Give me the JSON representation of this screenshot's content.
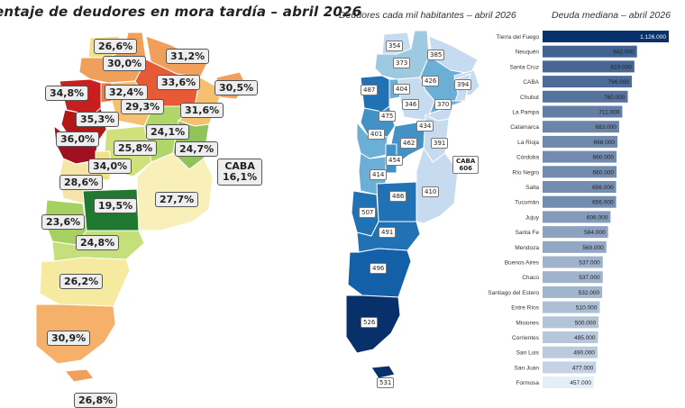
{
  "chart_data": [
    {
      "type": "map",
      "title": "entaje de deudores en mora tardía – abril 2026",
      "labels": [
        {
          "region": "Jujuy",
          "value": "26,6%"
        },
        {
          "region": "Salta",
          "value": "30,0%"
        },
        {
          "region": "Formosa",
          "value": "31,2%"
        },
        {
          "region": "Chaco",
          "value": "33,6%"
        },
        {
          "region": "Misiones",
          "value": "30,5%"
        },
        {
          "region": "Catamarca",
          "value": "34,8%"
        },
        {
          "region": "Tucumán",
          "value": "32,4%"
        },
        {
          "region": "Santiago del Estero",
          "value": "29,3%"
        },
        {
          "region": "Corrientes",
          "value": "31,6%"
        },
        {
          "region": "La Rioja",
          "value": "35,3%"
        },
        {
          "region": "Santa Fe",
          "value": "24,1%"
        },
        {
          "region": "San Juan",
          "value": "36,0%"
        },
        {
          "region": "Córdoba",
          "value": "25,8%"
        },
        {
          "region": "Entre Ríos",
          "value": "24,7%"
        },
        {
          "region": "CABA",
          "value": "16,1%",
          "label": "CABA"
        },
        {
          "region": "San Luis",
          "value": "34,0%"
        },
        {
          "region": "Mendoza",
          "value": "28,6%"
        },
        {
          "region": "La Pampa",
          "value": "19,5%"
        },
        {
          "region": "Buenos Aires",
          "value": "27,7%"
        },
        {
          "region": "Neuquén",
          "value": "23,6%"
        },
        {
          "region": "Río Negro",
          "value": "24,8%"
        },
        {
          "region": "Chubut",
          "value": "26,2%"
        },
        {
          "region": "Santa Cruz",
          "value": "30,9%"
        },
        {
          "region": "Tierra del Fuego",
          "value": "26,8%"
        }
      ]
    },
    {
      "type": "map",
      "title": "Deudores cada mil habitantes – abril 2026",
      "labels": [
        {
          "region": "Jujuy",
          "value": "354"
        },
        {
          "region": "Salta",
          "value": "373"
        },
        {
          "region": "Formosa",
          "value": "385"
        },
        {
          "region": "Misiones",
          "value": "394"
        },
        {
          "region": "Catamarca",
          "value": "487"
        },
        {
          "region": "Tucumán",
          "value": "404"
        },
        {
          "region": "Chaco",
          "value": "426"
        },
        {
          "region": "Santiago del Estero",
          "value": "346"
        },
        {
          "region": "Corrientes",
          "value": "370"
        },
        {
          "region": "La Rioja",
          "value": "475"
        },
        {
          "region": "Santa Fe",
          "value": "434"
        },
        {
          "region": "San Juan",
          "value": "401"
        },
        {
          "region": "Córdoba",
          "value": "462"
        },
        {
          "region": "Entre Ríos",
          "value": "391"
        },
        {
          "region": "San Luis",
          "value": "454"
        },
        {
          "region": "CABA",
          "value": "606",
          "label": "CABA"
        },
        {
          "region": "Mendoza",
          "value": "414"
        },
        {
          "region": "La Pampa",
          "value": "486"
        },
        {
          "region": "Buenos Aires",
          "value": "410"
        },
        {
          "region": "Neuquén",
          "value": "507"
        },
        {
          "region": "Río Negro",
          "value": "491"
        },
        {
          "region": "Chubut",
          "value": "496"
        },
        {
          "region": "Santa Cruz",
          "value": "526"
        },
        {
          "region": "Tierra del Fuego",
          "value": "531"
        }
      ]
    },
    {
      "type": "bar",
      "orientation": "horizontal",
      "title": "Deuda mediana – abril 2026",
      "xlim": [
        0,
        1126000
      ],
      "categories": [
        "Tierra del Fuego",
        "Neuquén",
        "Santa Cruz",
        "CABA",
        "Chubut",
        "La Pampa",
        "Catamarca",
        "La Rioja",
        "Córdoba",
        "Río Negro",
        "Salta",
        "Tucumán",
        "Jujuy",
        "Santa Fe",
        "Mendoza",
        "Buenos Aires",
        "Chaco",
        "Santiago del Estero",
        "Entre Ríos",
        "Misiones",
        "Corrientes",
        "San Luis",
        "San Juan",
        "Formosa"
      ],
      "values": [
        1126000,
        842000,
        819000,
        796000,
        760000,
        711000,
        683000,
        668000,
        660000,
        660000,
        656000,
        656000,
        606000,
        584000,
        569000,
        537000,
        537000,
        532000,
        510000,
        500000,
        495000,
        490000,
        477000,
        457000
      ],
      "value_labels": [
        "1.126.000",
        "842.000",
        "819.000",
        "796.000",
        "760.000",
        "711.000",
        "683.000",
        "668.000",
        "660.000",
        "660.000",
        "656.000",
        "656.000",
        "606.000",
        "584.000",
        "569.000",
        "537.000",
        "537.000",
        "532.000",
        "510.000",
        "500.000",
        "495.000",
        "490.000",
        "477.000",
        "457.000"
      ],
      "colors": {
        "max": "#08306b",
        "min": "#e4eef8"
      }
    }
  ]
}
